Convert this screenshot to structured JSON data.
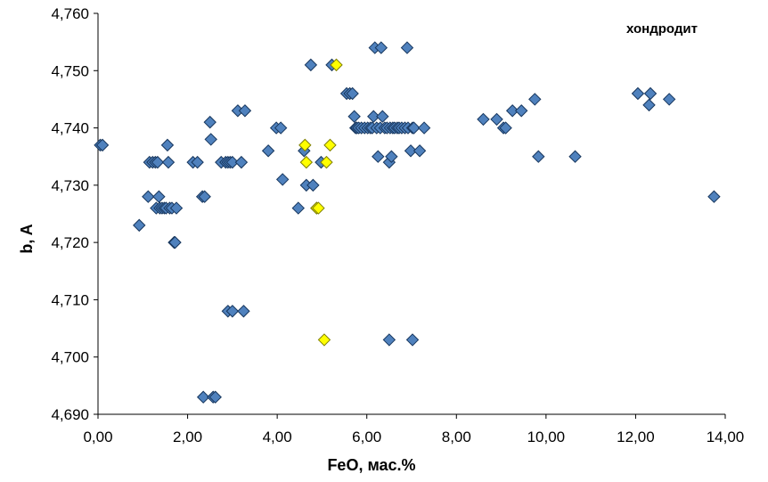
{
  "chart_data": {
    "type": "scatter",
    "title": "",
    "xlabel": "FeO, мас.%",
    "ylabel": "b, A",
    "annotation": "хондродит",
    "xlim": [
      0,
      14
    ],
    "ylim": [
      4.69,
      4.76
    ],
    "xticks": [
      0,
      2,
      4,
      6,
      8,
      10,
      12,
      14
    ],
    "yticks": [
      4.69,
      4.7,
      4.71,
      4.72,
      4.73,
      4.74,
      4.75,
      4.76
    ],
    "xtick_labels": [
      "0,00",
      "2,00",
      "4,00",
      "6,00",
      "8,00",
      "10,00",
      "12,00",
      "14,00"
    ],
    "ytick_labels": [
      "4,690",
      "4,700",
      "4,710",
      "4,720",
      "4,730",
      "4,740",
      "4,750",
      "4,760"
    ],
    "grid": false,
    "series": [
      {
        "color": "#4F81BD",
        "stroke": "#17365D",
        "marker": "diamond",
        "points": [
          [
            0.05,
            4.737
          ],
          [
            0.1,
            4.737
          ],
          [
            0.92,
            4.723
          ],
          [
            1.12,
            4.728
          ],
          [
            1.15,
            4.734
          ],
          [
            1.22,
            4.734
          ],
          [
            1.28,
            4.734
          ],
          [
            1.33,
            4.734
          ],
          [
            1.3,
            4.726
          ],
          [
            1.36,
            4.728
          ],
          [
            1.38,
            4.726
          ],
          [
            1.43,
            4.726
          ],
          [
            1.48,
            4.726
          ],
          [
            1.52,
            4.726
          ],
          [
            1.55,
            4.737
          ],
          [
            1.57,
            4.734
          ],
          [
            1.6,
            4.726
          ],
          [
            1.65,
            4.726
          ],
          [
            1.7,
            4.72
          ],
          [
            1.72,
            4.72
          ],
          [
            1.75,
            4.726
          ],
          [
            2.12,
            4.734
          ],
          [
            2.22,
            4.734
          ],
          [
            2.33,
            4.728
          ],
          [
            2.38,
            4.728
          ],
          [
            2.35,
            4.693
          ],
          [
            2.5,
            4.741
          ],
          [
            2.52,
            4.738
          ],
          [
            2.57,
            4.693
          ],
          [
            2.62,
            4.693
          ],
          [
            2.75,
            4.734
          ],
          [
            2.85,
            4.734
          ],
          [
            2.9,
            4.734
          ],
          [
            2.95,
            4.734
          ],
          [
            3.0,
            4.734
          ],
          [
            2.9,
            4.708
          ],
          [
            3.0,
            4.708
          ],
          [
            3.12,
            4.743
          ],
          [
            3.2,
            4.734
          ],
          [
            3.25,
            4.708
          ],
          [
            3.28,
            4.743
          ],
          [
            3.8,
            4.736
          ],
          [
            3.98,
            4.74
          ],
          [
            4.08,
            4.74
          ],
          [
            4.12,
            4.731
          ],
          [
            4.47,
            4.726
          ],
          [
            4.6,
            4.736
          ],
          [
            4.65,
            4.73
          ],
          [
            4.75,
            4.751
          ],
          [
            4.8,
            4.73
          ],
          [
            4.88,
            4.726
          ],
          [
            4.98,
            4.734
          ],
          [
            5.22,
            4.751
          ],
          [
            5.55,
            4.746
          ],
          [
            5.62,
            4.746
          ],
          [
            5.68,
            4.746
          ],
          [
            5.72,
            4.742
          ],
          [
            5.75,
            4.74
          ],
          [
            5.78,
            4.74
          ],
          [
            5.82,
            4.74
          ],
          [
            5.88,
            4.74
          ],
          [
            5.95,
            4.74
          ],
          [
            6.02,
            4.74
          ],
          [
            6.08,
            4.74
          ],
          [
            6.12,
            4.74
          ],
          [
            6.15,
            4.742
          ],
          [
            6.18,
            4.754
          ],
          [
            6.22,
            4.74
          ],
          [
            6.25,
            4.735
          ],
          [
            6.3,
            4.74
          ],
          [
            6.32,
            4.754
          ],
          [
            6.35,
            4.742
          ],
          [
            6.4,
            4.74
          ],
          [
            6.45,
            4.74
          ],
          [
            6.5,
            4.734
          ],
          [
            6.5,
            4.703
          ],
          [
            6.52,
            4.74
          ],
          [
            6.55,
            4.735
          ],
          [
            6.58,
            4.74
          ],
          [
            6.62,
            4.74
          ],
          [
            6.68,
            4.74
          ],
          [
            6.72,
            4.74
          ],
          [
            6.78,
            4.74
          ],
          [
            6.85,
            4.74
          ],
          [
            6.9,
            4.754
          ],
          [
            6.92,
            4.74
          ],
          [
            6.98,
            4.736
          ],
          [
            7.02,
            4.74
          ],
          [
            7.02,
            4.703
          ],
          [
            7.05,
            4.74
          ],
          [
            7.18,
            4.736
          ],
          [
            7.28,
            4.74
          ],
          [
            8.6,
            4.7415
          ],
          [
            8.9,
            4.7415
          ],
          [
            9.05,
            4.74
          ],
          [
            9.1,
            4.74
          ],
          [
            9.25,
            4.743
          ],
          [
            9.45,
            4.743
          ],
          [
            9.75,
            4.745
          ],
          [
            9.83,
            4.735
          ],
          [
            10.65,
            4.735
          ],
          [
            12.05,
            4.746
          ],
          [
            12.3,
            4.744
          ],
          [
            12.33,
            4.746
          ],
          [
            12.75,
            4.745
          ],
          [
            13.75,
            4.728
          ]
        ]
      },
      {
        "color": "#FFFF00",
        "stroke": "#7F7F00",
        "marker": "diamond",
        "points": [
          [
            4.62,
            4.737
          ],
          [
            4.65,
            4.734
          ],
          [
            4.88,
            4.726
          ],
          [
            4.92,
            4.726
          ],
          [
            5.05,
            4.703
          ],
          [
            5.1,
            4.734
          ],
          [
            5.18,
            4.737
          ],
          [
            5.32,
            4.751
          ]
        ]
      }
    ]
  }
}
